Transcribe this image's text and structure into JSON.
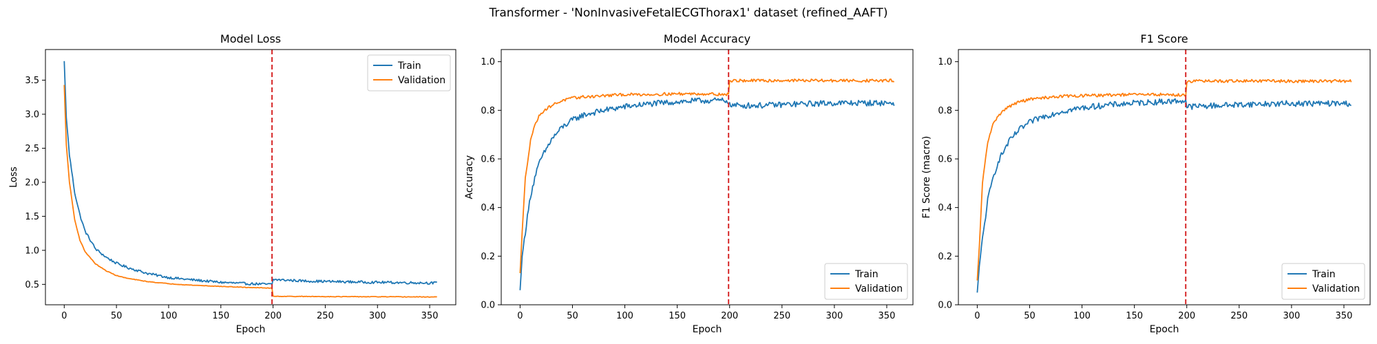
{
  "figure": {
    "title": "Transformer - 'NonInvasiveFetalECGThorax1' dataset (refined_AAFT)"
  },
  "colors": {
    "train": "#1f77b4",
    "validation": "#ff7f0e",
    "marker": "#d62728"
  },
  "chart_data": [
    {
      "type": "line",
      "title": "Model Loss",
      "xlabel": "Epoch",
      "ylabel": "Loss",
      "xlim": [
        -18,
        375
      ],
      "ylim": [
        0.2,
        3.95
      ],
      "xticks": [
        0,
        50,
        100,
        150,
        200,
        250,
        300,
        350
      ],
      "yticks": [
        0.5,
        1.0,
        1.5,
        2.0,
        2.5,
        3.0,
        3.5
      ],
      "tick_decimals": 1,
      "legend": "top-right",
      "grid": false,
      "vline_x": 199,
      "x_points": [
        0,
        2,
        5,
        10,
        15,
        20,
        30,
        40,
        50,
        60,
        80,
        100,
        120,
        150,
        175,
        199,
        200,
        201,
        230,
        260,
        300,
        357
      ],
      "series": [
        {
          "name": "Train",
          "color_key": "train",
          "values": [
            3.78,
            2.95,
            2.4,
            1.85,
            1.52,
            1.28,
            1.02,
            0.9,
            0.81,
            0.75,
            0.66,
            0.6,
            0.57,
            0.53,
            0.51,
            0.5,
            0.57,
            0.57,
            0.55,
            0.54,
            0.53,
            0.52
          ],
          "noise": 0.018
        },
        {
          "name": "Validation",
          "color_key": "validation",
          "values": [
            3.43,
            2.55,
            2.0,
            1.45,
            1.15,
            0.98,
            0.8,
            0.7,
            0.63,
            0.59,
            0.54,
            0.51,
            0.49,
            0.47,
            0.455,
            0.445,
            0.33,
            0.325,
            0.322,
            0.32,
            0.318,
            0.315
          ],
          "noise": 0.004
        }
      ]
    },
    {
      "type": "line",
      "title": "Model Accuracy",
      "xlabel": "Epoch",
      "ylabel": "Accuracy",
      "xlim": [
        -18,
        375
      ],
      "ylim": [
        0.0,
        1.05
      ],
      "xticks": [
        0,
        50,
        100,
        150,
        200,
        250,
        300,
        350
      ],
      "yticks": [
        0.0,
        0.2,
        0.4,
        0.6,
        0.8,
        1.0
      ],
      "tick_decimals": 1,
      "legend": "bottom-right",
      "grid": false,
      "vline_x": 199,
      "x_points": [
        0,
        2,
        5,
        10,
        15,
        20,
        30,
        40,
        50,
        60,
        80,
        100,
        120,
        150,
        175,
        199,
        200,
        201,
        230,
        260,
        300,
        357
      ],
      "series": [
        {
          "name": "Train",
          "color_key": "train",
          "values": [
            0.06,
            0.2,
            0.3,
            0.45,
            0.54,
            0.6,
            0.68,
            0.73,
            0.76,
            0.78,
            0.8,
            0.815,
            0.825,
            0.835,
            0.84,
            0.84,
            0.82,
            0.82,
            0.82,
            0.825,
            0.83,
            0.83
          ],
          "noise": 0.012
        },
        {
          "name": "Validation",
          "color_key": "validation",
          "values": [
            0.13,
            0.3,
            0.52,
            0.68,
            0.75,
            0.79,
            0.82,
            0.84,
            0.85,
            0.855,
            0.86,
            0.865,
            0.865,
            0.868,
            0.868,
            0.865,
            0.92,
            0.922,
            0.922,
            0.923,
            0.922,
            0.922
          ],
          "noise": 0.006
        }
      ]
    },
    {
      "type": "line",
      "title": "F1 Score",
      "xlabel": "Epoch",
      "ylabel": "F1 Score (macro)",
      "xlim": [
        -18,
        375
      ],
      "ylim": [
        0.0,
        1.05
      ],
      "xticks": [
        0,
        50,
        100,
        150,
        200,
        250,
        300,
        350
      ],
      "yticks": [
        0.0,
        0.2,
        0.4,
        0.6,
        0.8,
        1.0
      ],
      "tick_decimals": 1,
      "legend": "bottom-right",
      "grid": false,
      "vline_x": 199,
      "x_points": [
        0,
        2,
        5,
        10,
        15,
        20,
        30,
        40,
        50,
        60,
        80,
        100,
        120,
        150,
        175,
        199,
        200,
        201,
        230,
        260,
        300,
        357
      ],
      "series": [
        {
          "name": "Train",
          "color_key": "train",
          "values": [
            0.05,
            0.16,
            0.27,
            0.43,
            0.52,
            0.59,
            0.67,
            0.72,
            0.75,
            0.77,
            0.795,
            0.81,
            0.82,
            0.83,
            0.835,
            0.84,
            0.815,
            0.815,
            0.82,
            0.825,
            0.828,
            0.828
          ],
          "noise": 0.012
        },
        {
          "name": "Validation",
          "color_key": "validation",
          "values": [
            0.1,
            0.24,
            0.5,
            0.67,
            0.74,
            0.78,
            0.815,
            0.835,
            0.845,
            0.85,
            0.858,
            0.86,
            0.862,
            0.865,
            0.865,
            0.862,
            0.918,
            0.92,
            0.92,
            0.921,
            0.92,
            0.92
          ],
          "noise": 0.006
        }
      ]
    }
  ]
}
